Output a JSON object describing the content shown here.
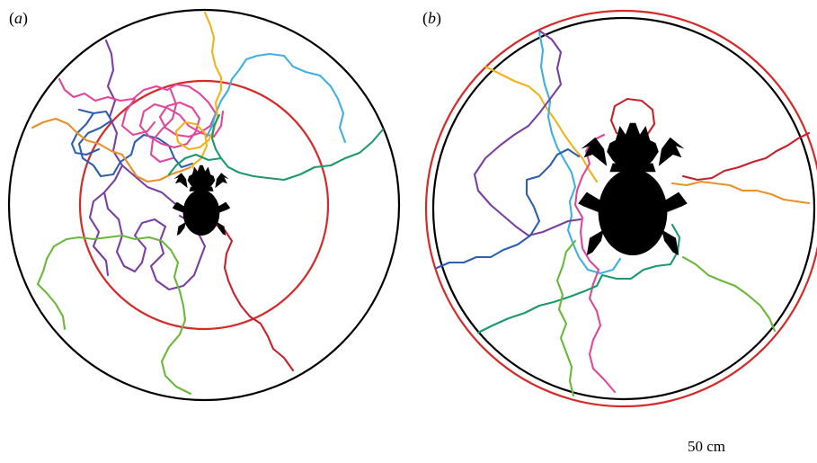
{
  "panels": [
    {
      "id": "a",
      "letter": "a"
    },
    {
      "id": "b",
      "letter": "b"
    }
  ],
  "scale_bar": {
    "label": "50 cm"
  },
  "colors": {
    "outer_ring": "#000000",
    "inner_ring": "#d62a2a",
    "beetle": "#000000",
    "tracks": [
      "#7b3fa0",
      "#2d5fb0",
      "#e8902a",
      "#e0479a",
      "#3fb0e0",
      "#f2b21a",
      "#1a9a6a",
      "#6ab83a",
      "#c8202a"
    ]
  },
  "icons": {
    "beetle": "dung-beetle-silhouette"
  }
}
